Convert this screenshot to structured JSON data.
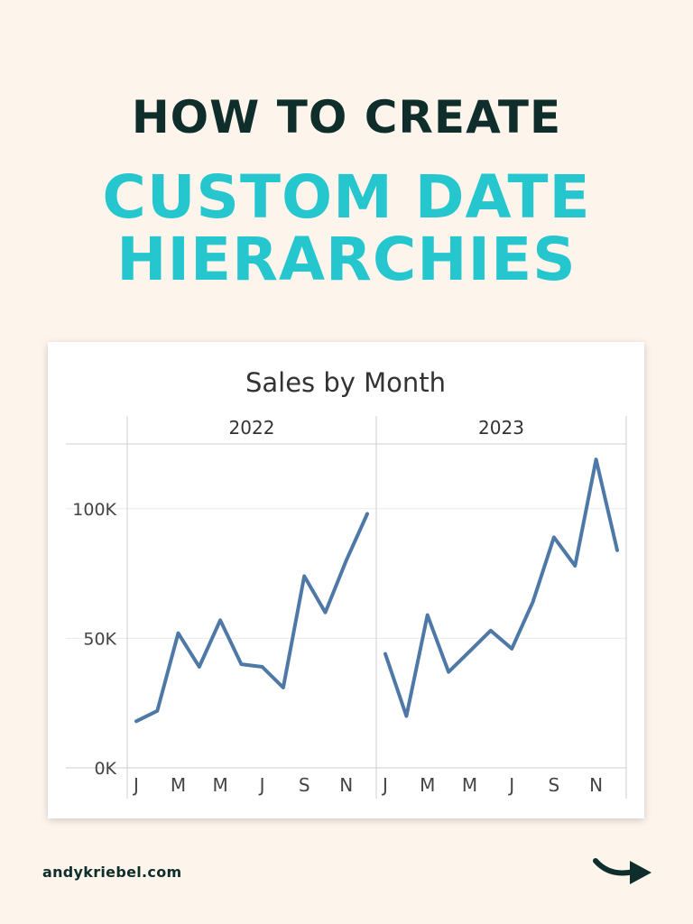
{
  "header": {
    "line1": "HOW TO CREATE",
    "line2": "CUSTOM DATE",
    "line3": "HIERARCHIES"
  },
  "footer": {
    "site": "andykriebel.com"
  },
  "colors": {
    "background": "#fdf5ec",
    "title_dark": "#0f2e2b",
    "title_accent": "#26c6cf",
    "series_line": "#4e79a7"
  },
  "icons": {
    "next": "curved-arrow-right-icon"
  },
  "chart_data": {
    "type": "line",
    "title": "Sales by Month",
    "panels": [
      "2022",
      "2023"
    ],
    "x_tick_labels": [
      "J",
      "M",
      "M",
      "J",
      "S",
      "N"
    ],
    "x_tick_months": [
      1,
      3,
      5,
      7,
      9,
      11
    ],
    "y_tick_labels": [
      "0K",
      "50K",
      "100K"
    ],
    "y_tick_values": [
      0,
      50000,
      100000
    ],
    "ylim": [
      0,
      125000
    ],
    "grid": true,
    "series": [
      {
        "values": [
          [
            18000,
            22000,
            52000,
            39000,
            57000,
            40000,
            39000,
            31000,
            74000,
            60000,
            80000,
            98000
          ],
          [
            44000,
            20000,
            59000,
            37000,
            45000,
            53000,
            46000,
            64000,
            89000,
            78000,
            119000,
            84000
          ]
        ]
      }
    ]
  }
}
